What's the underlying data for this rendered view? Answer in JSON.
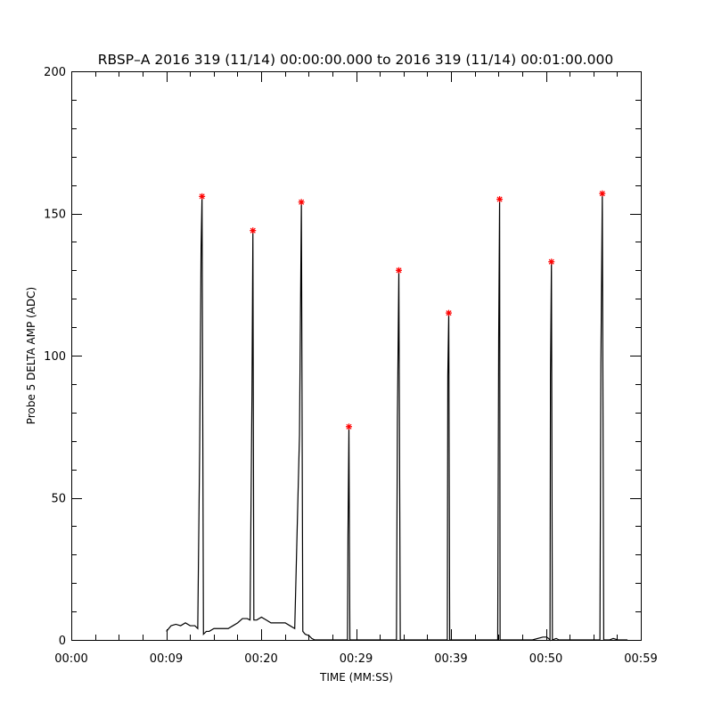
{
  "chart_data": {
    "type": "line",
    "title": "RBSP–A 2016 319 (11/14) 00:00:00.000 to 2016 319 (11/14) 00:01:00.000",
    "xlabel": "TIME (MM:SS)",
    "ylabel": "Probe 5 DELTA AMP (ADC)",
    "xlim": [
      0,
      59.9
    ],
    "ylim": [
      0,
      200
    ],
    "x_unit": "seconds",
    "xticks": [
      {
        "value": 0,
        "label": "00:00"
      },
      {
        "value": 9.98,
        "label": "00:09"
      },
      {
        "value": 19.97,
        "label": "00:20"
      },
      {
        "value": 29.95,
        "label": "00:29"
      },
      {
        "value": 39.93,
        "label": "00:39"
      },
      {
        "value": 49.92,
        "label": "00:50"
      },
      {
        "value": 59.9,
        "label": "00:59"
      }
    ],
    "yticks": [
      {
        "value": 0,
        "label": "0"
      },
      {
        "value": 50,
        "label": "50"
      },
      {
        "value": 100,
        "label": "100"
      },
      {
        "value": 150,
        "label": "150"
      },
      {
        "value": 200,
        "label": "200"
      }
    ],
    "series": [
      {
        "color": "#000000",
        "points": [
          [
            10.0,
            3
          ],
          [
            10.5,
            5
          ],
          [
            11.0,
            5.5
          ],
          [
            11.5,
            5
          ],
          [
            12.0,
            6
          ],
          [
            12.5,
            5
          ],
          [
            13.0,
            5
          ],
          [
            13.3,
            4
          ],
          [
            13.5,
            67
          ],
          [
            13.65,
            138
          ],
          [
            13.75,
            156
          ],
          [
            13.9,
            2
          ],
          [
            14.2,
            3
          ],
          [
            14.5,
            3
          ],
          [
            15.0,
            4
          ],
          [
            15.5,
            4
          ],
          [
            16.0,
            4
          ],
          [
            16.5,
            4
          ],
          [
            17.0,
            5
          ],
          [
            17.5,
            6
          ],
          [
            18.0,
            7.5
          ],
          [
            18.5,
            7.5
          ],
          [
            18.8,
            7
          ],
          [
            19.0,
            86
          ],
          [
            19.1,
            144
          ],
          [
            19.2,
            7
          ],
          [
            19.5,
            7
          ],
          [
            20.0,
            8
          ],
          [
            20.5,
            7
          ],
          [
            21.0,
            6
          ],
          [
            21.5,
            6
          ],
          [
            22.0,
            6
          ],
          [
            22.5,
            6
          ],
          [
            23.0,
            5
          ],
          [
            23.5,
            4
          ],
          [
            24.0,
            72
          ],
          [
            24.2,
            154
          ],
          [
            24.35,
            3
          ],
          [
            24.6,
            2
          ],
          [
            25.0,
            1.5
          ],
          [
            25.3,
            0.5
          ],
          [
            25.6,
            0
          ],
          [
            28.5,
            0
          ],
          [
            29.05,
            0
          ],
          [
            29.1,
            37
          ],
          [
            29.2,
            75
          ],
          [
            29.3,
            0
          ],
          [
            33.5,
            0
          ],
          [
            34.2,
            0
          ],
          [
            34.3,
            78
          ],
          [
            34.45,
            130
          ],
          [
            34.6,
            0
          ],
          [
            38.5,
            0
          ],
          [
            39.55,
            0
          ],
          [
            39.6,
            93
          ],
          [
            39.7,
            115
          ],
          [
            39.8,
            0
          ],
          [
            43.5,
            0
          ],
          [
            44.85,
            0
          ],
          [
            44.95,
            106
          ],
          [
            45.05,
            155
          ],
          [
            45.1,
            0
          ],
          [
            48.5,
            0
          ],
          [
            49.6,
            1
          ],
          [
            50.0,
            1
          ],
          [
            50.2,
            0.5
          ],
          [
            50.35,
            0
          ],
          [
            50.4,
            93
          ],
          [
            50.5,
            133
          ],
          [
            50.6,
            0
          ],
          [
            51.0,
            0.5
          ],
          [
            51.3,
            0
          ],
          [
            55.0,
            0
          ],
          [
            55.6,
            0
          ],
          [
            55.7,
            97
          ],
          [
            55.85,
            157
          ],
          [
            56.0,
            0
          ],
          [
            56.6,
            0
          ],
          [
            57.0,
            0.5
          ],
          [
            57.5,
            0
          ],
          [
            58.5,
            0
          ]
        ]
      }
    ],
    "peaks": {
      "color": "#ff0000",
      "marker": "*",
      "points": [
        [
          13.75,
          156
        ],
        [
          19.1,
          144
        ],
        [
          24.2,
          154
        ],
        [
          29.2,
          75
        ],
        [
          34.45,
          130
        ],
        [
          39.7,
          115
        ],
        [
          45.05,
          155
        ],
        [
          50.5,
          133
        ],
        [
          55.85,
          157
        ]
      ]
    },
    "grid": false,
    "legend": "none"
  }
}
